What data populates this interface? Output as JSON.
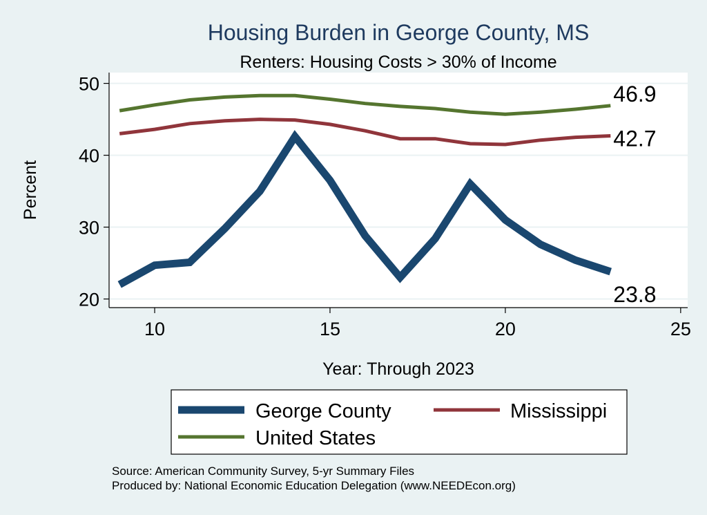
{
  "chart_data": {
    "type": "line",
    "title": "Housing Burden in George County, MS",
    "subtitle": "Renters: Housing Costs > 30% of Income",
    "xlabel": "Year: Through 2023",
    "ylabel": "Percent",
    "xlim": [
      8.7,
      25.2
    ],
    "ylim": [
      18.8,
      51.5
    ],
    "xticks": [
      10,
      15,
      20,
      25
    ],
    "yticks": [
      20,
      30,
      40,
      50
    ],
    "grid": true,
    "legend_position": "bottom",
    "x": [
      9,
      10,
      11,
      12,
      13,
      14,
      15,
      16,
      17,
      18,
      19,
      20,
      21,
      22,
      23
    ],
    "series": [
      {
        "name": "George County",
        "color": "#1a476f",
        "values": [
          22.0,
          24.7,
          25.1,
          29.8,
          35.0,
          42.6,
          36.5,
          28.8,
          23.0,
          28.4,
          36.0,
          31.0,
          27.6,
          25.4,
          23.8
        ],
        "end_label": "23.8"
      },
      {
        "name": "Mississippi",
        "color": "#90353b",
        "values": [
          43.0,
          43.6,
          44.4,
          44.8,
          45.0,
          44.9,
          44.3,
          43.4,
          42.3,
          42.3,
          41.6,
          41.5,
          42.1,
          42.5,
          42.7
        ],
        "end_label": "42.7"
      },
      {
        "name": "United States",
        "color": "#55752f",
        "values": [
          46.2,
          47.0,
          47.7,
          48.1,
          48.3,
          48.3,
          47.8,
          47.2,
          46.8,
          46.5,
          46.0,
          45.7,
          46.0,
          46.4,
          46.9
        ],
        "end_label": "46.9"
      }
    ]
  },
  "source_line_1": "Source: American Community Survey, 5-yr Summary Files",
  "source_line_2": "Produced by: National Economic Education Delegation (www.NEEDEcon.org)"
}
